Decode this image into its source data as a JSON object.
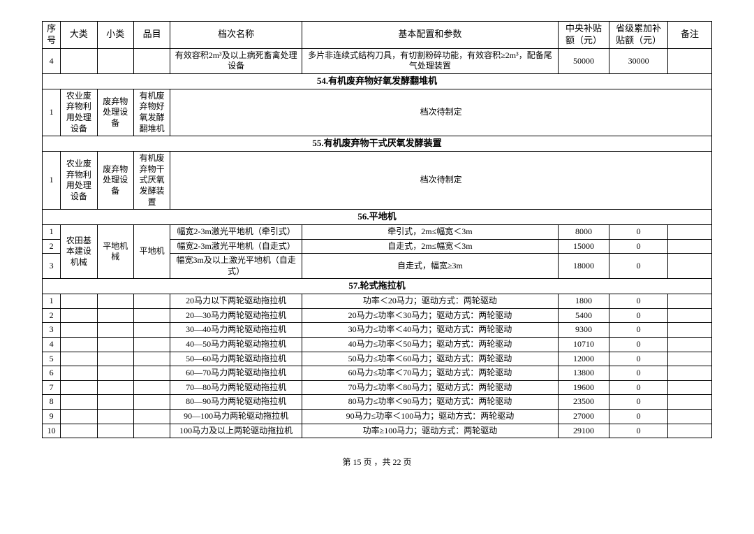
{
  "header": {
    "seq": "序号",
    "dalei": "大类",
    "xiaolei": "小类",
    "pinmu": "品目",
    "dangci": "档次名称",
    "param": "基本配置和参数",
    "central": "中央补贴额（元）",
    "prov": "省级累加补贴额（元）",
    "note": "备注"
  },
  "row4": {
    "seq": "4",
    "name": "有效容积2m³及以上病死畜禽处理设备",
    "param": "多片非连续式结构刀具，有切割粉碎功能，有效容积≥2m³，配备尾气处理装置",
    "central": "50000",
    "prov": "30000"
  },
  "s54": {
    "title": "54.有机废弃物好氧发酵翻堆机",
    "seq": "1",
    "dalei": "农业废弃物利用处理设备",
    "xiaolei": "废弃物处理设备",
    "pinmu": "有机废弃物好氧发酵翻堆机",
    "param": "档次待制定"
  },
  "s55": {
    "title": "55.有机废弃物干式厌氧发酵装置",
    "seq": "1",
    "dalei": "农业废弃物利用处理设备",
    "xiaolei": "废弃物处理设备",
    "pinmu": "有机废弃物干式厌氧发酵装置",
    "param": "档次待制定"
  },
  "s56": {
    "title": "56.平地机",
    "dalei": "农田基本建设机械",
    "xiaolei": "平地机械",
    "pinmu": "平地机",
    "rows": [
      {
        "seq": "1",
        "name": "幅宽2-3m激光平地机（牵引式）",
        "param": "牵引式，2m≤幅宽＜3m",
        "central": "8000",
        "prov": "0"
      },
      {
        "seq": "2",
        "name": "幅宽2-3m激光平地机（自走式）",
        "param": "自走式，2m≤幅宽＜3m",
        "central": "15000",
        "prov": "0"
      },
      {
        "seq": "3",
        "name": "幅宽3m及以上激光平地机（自走式）",
        "param": "自走式，幅宽≥3m",
        "central": "18000",
        "prov": "0"
      }
    ]
  },
  "s57": {
    "title": "57.轮式拖拉机",
    "rows": [
      {
        "seq": "1",
        "name": "20马力以下两轮驱动拖拉机",
        "param": "功率＜20马力；驱动方式：两轮驱动",
        "central": "1800",
        "prov": "0"
      },
      {
        "seq": "2",
        "name": "20—30马力两轮驱动拖拉机",
        "param": "20马力≤功率＜30马力；驱动方式：两轮驱动",
        "central": "5400",
        "prov": "0"
      },
      {
        "seq": "3",
        "name": "30—40马力两轮驱动拖拉机",
        "param": "30马力≤功率＜40马力；驱动方式：两轮驱动",
        "central": "9300",
        "prov": "0"
      },
      {
        "seq": "4",
        "name": "40—50马力两轮驱动拖拉机",
        "param": "40马力≤功率＜50马力；驱动方式：两轮驱动",
        "central": "10710",
        "prov": "0"
      },
      {
        "seq": "5",
        "name": "50—60马力两轮驱动拖拉机",
        "param": "50马力≤功率＜60马力；驱动方式：两轮驱动",
        "central": "12000",
        "prov": "0"
      },
      {
        "seq": "6",
        "name": "60—70马力两轮驱动拖拉机",
        "param": "60马力≤功率＜70马力；驱动方式：两轮驱动",
        "central": "13800",
        "prov": "0"
      },
      {
        "seq": "7",
        "name": "70—80马力两轮驱动拖拉机",
        "param": "70马力≤功率＜80马力；驱动方式：两轮驱动",
        "central": "19600",
        "prov": "0"
      },
      {
        "seq": "8",
        "name": "80—90马力两轮驱动拖拉机",
        "param": "80马力≤功率＜90马力；驱动方式：两轮驱动",
        "central": "23500",
        "prov": "0"
      },
      {
        "seq": "9",
        "name": "90—100马力两轮驱动拖拉机",
        "param": "90马力≤功率＜100马力；驱动方式：两轮驱动",
        "central": "27000",
        "prov": "0"
      },
      {
        "seq": "10",
        "name": "100马力及以上两轮驱动拖拉机",
        "param": "功率≥100马力；驱动方式：两轮驱动",
        "central": "29100",
        "prov": "0"
      }
    ]
  },
  "footer": "第 15 页 ，共 22 页"
}
